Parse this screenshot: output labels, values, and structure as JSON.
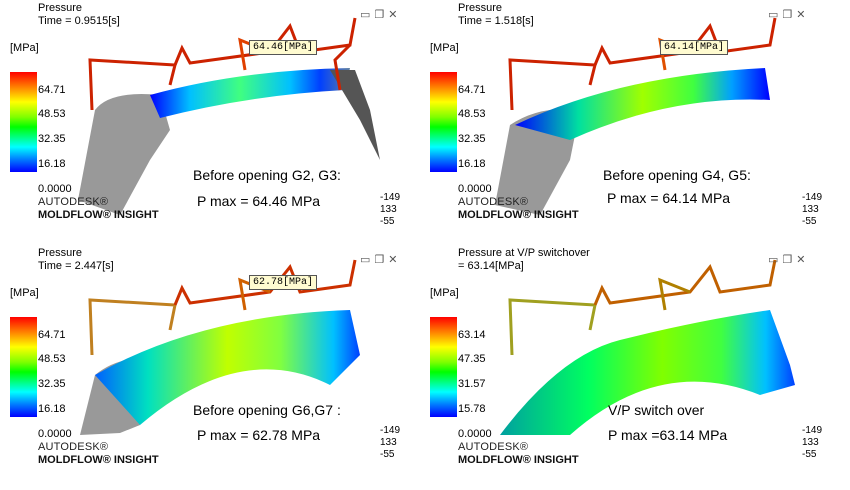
{
  "panels": [
    {
      "title_line1": "Pressure",
      "title_line2": "Time = 0.9515[s]",
      "unit": "[MPa]",
      "ticks": [
        "64.71",
        "48.53",
        "32.35",
        "16.18",
        "0.0000"
      ],
      "tooltip": "64.46[MPa]",
      "caption": "Before opening G2, G3:",
      "pmax": "P max = 64.46 MPa"
    },
    {
      "title_line1": "Pressure",
      "title_line2": "Time = 1.518[s]",
      "unit": "[MPa]",
      "ticks": [
        "64.71",
        "48.53",
        "32.35",
        "16.18",
        "0.0000"
      ],
      "tooltip": "64.14[MPa]",
      "caption": "Before opening G4, G5:",
      "pmax": "P max = 64.14 MPa"
    },
    {
      "title_line1": "Pressure",
      "title_line2": "Time = 2.447[s]",
      "unit": "[MPa]",
      "ticks": [
        "64.71",
        "48.53",
        "32.35",
        "16.18",
        "0.0000"
      ],
      "tooltip": "62.78[MPa]",
      "caption": "Before opening G6,G7 :",
      "pmax": "P max = 62.78 MPa"
    },
    {
      "title_line1": "Pressure at V/P switchover",
      "title_line2": "= 63.14[MPa]",
      "unit": "[MPa]",
      "ticks": [
        "63.14",
        "47.35",
        "31.57",
        "15.78",
        "0.0000"
      ],
      "tooltip": "",
      "caption": "V/P switch over",
      "pmax": "P max =63.14 MPa"
    }
  ],
  "brand": {
    "line1": "AUTODESK®",
    "line2": "MOLDFLOW® INSIGHT"
  },
  "axes": {
    "x": "-149",
    "y": "133",
    "z": "-55"
  },
  "window": {
    "minimize_icon": "minimize-icon",
    "restore_icon": "restore-icon",
    "close_icon": "close-icon"
  },
  "colors": {
    "max": "#ff0000",
    "min": "#0000ff",
    "tooltip_bg": "#fffbd0"
  }
}
